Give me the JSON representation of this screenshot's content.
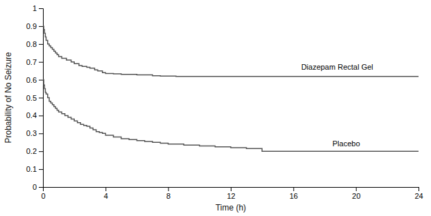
{
  "chart_data": {
    "type": "step",
    "xlabel": "Time (h)",
    "ylabel": "Probability of No Seizure",
    "xlim": [
      0,
      24
    ],
    "ylim": [
      0,
      1.0
    ],
    "xticks": [
      0,
      4,
      8,
      12,
      16,
      20,
      24
    ],
    "yticks": [
      0,
      0.1,
      0.2,
      0.3,
      0.4,
      0.5,
      0.6,
      0.7,
      0.8,
      0.9,
      1
    ],
    "grid": false,
    "series": [
      {
        "color": "#555555",
        "x": [
          0,
          0.05,
          0.1,
          0.15,
          0.2,
          0.3,
          0.4,
          0.5,
          0.6,
          0.7,
          0.8,
          0.9,
          1.0,
          1.2,
          1.5,
          1.8,
          2.0,
          2.3,
          2.5,
          2.8,
          3.0,
          3.3,
          3.5,
          3.8,
          4.0,
          4.5,
          5.0,
          6.0,
          7.0,
          7.5,
          8.5,
          24.0
        ],
        "values": [
          0.9,
          0.88,
          0.86,
          0.84,
          0.82,
          0.8,
          0.79,
          0.78,
          0.77,
          0.76,
          0.75,
          0.74,
          0.73,
          0.72,
          0.71,
          0.7,
          0.69,
          0.68,
          0.675,
          0.67,
          0.665,
          0.655,
          0.65,
          0.64,
          0.635,
          0.633,
          0.63,
          0.627,
          0.623,
          0.621,
          0.619,
          0.619
        ]
      },
      {
        "color": "#555555",
        "x": [
          0,
          0.05,
          0.1,
          0.15,
          0.2,
          0.3,
          0.4,
          0.5,
          0.6,
          0.7,
          0.8,
          0.9,
          1.0,
          1.2,
          1.4,
          1.6,
          1.8,
          2.0,
          2.2,
          2.4,
          2.6,
          2.8,
          3.0,
          3.2,
          3.4,
          3.6,
          3.8,
          4.0,
          4.5,
          5.0,
          5.5,
          6.0,
          6.5,
          7.0,
          7.5,
          8.0,
          9.0,
          10.0,
          11.0,
          12.0,
          13.0,
          14.0,
          24.0
        ],
        "values": [
          0.6,
          0.57,
          0.55,
          0.53,
          0.52,
          0.5,
          0.48,
          0.47,
          0.46,
          0.45,
          0.44,
          0.43,
          0.42,
          0.41,
          0.4,
          0.39,
          0.38,
          0.37,
          0.36,
          0.35,
          0.345,
          0.34,
          0.33,
          0.32,
          0.31,
          0.305,
          0.3,
          0.29,
          0.28,
          0.27,
          0.265,
          0.26,
          0.255,
          0.25,
          0.245,
          0.24,
          0.235,
          0.23,
          0.225,
          0.22,
          0.215,
          0.2,
          0.2
        ]
      }
    ],
    "annotations": [
      {
        "text": "Diazepam Rectal Gel",
        "x": 16.5,
        "y": 0.645
      },
      {
        "text": "Placebo",
        "x": 18.5,
        "y": 0.215
      }
    ]
  }
}
